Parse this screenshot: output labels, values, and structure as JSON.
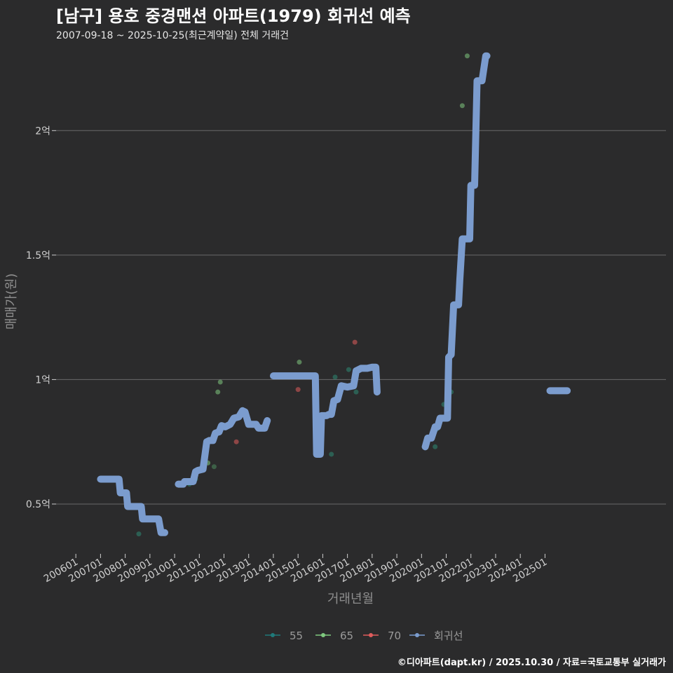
{
  "chart_data": {
    "type": "line",
    "title": "[남구] 용호 중경맨션 아파트(1979) 회귀선 예측",
    "subtitle": "2007-09-18 ~ 2025-10-25(최근계약일) 전체 거래건",
    "xlabel": "거래년월",
    "ylabel": "매매가(원)",
    "caption": "©디아파트(dapt.kr) / 2025.10.30 / 자료=국토교통부 실거래가",
    "x_range": [
      2005.2,
      2029.9
    ],
    "y_range": [
      0.3,
      2.35
    ],
    "x_ticks": [
      {
        "label": "200601",
        "x": 2006.0
      },
      {
        "label": "200701",
        "x": 2007.0
      },
      {
        "label": "200801",
        "x": 2008.0
      },
      {
        "label": "200901",
        "x": 2009.0
      },
      {
        "label": "201001",
        "x": 2010.0
      },
      {
        "label": "201101",
        "x": 2011.0
      },
      {
        "label": "201201",
        "x": 2012.0
      },
      {
        "label": "201301",
        "x": 2013.0
      },
      {
        "label": "201401",
        "x": 2014.0
      },
      {
        "label": "201501",
        "x": 2015.0
      },
      {
        "label": "201601",
        "x": 2016.0
      },
      {
        "label": "201701",
        "x": 2017.0
      },
      {
        "label": "201801",
        "x": 2018.0
      },
      {
        "label": "201901",
        "x": 2019.0
      },
      {
        "label": "202001",
        "x": 2020.0
      },
      {
        "label": "202101",
        "x": 2021.0
      },
      {
        "label": "202201",
        "x": 2022.0
      },
      {
        "label": "202301",
        "x": 2023.0
      },
      {
        "label": "202401",
        "x": 2024.0
      },
      {
        "label": "202501",
        "x": 2025.0
      }
    ],
    "y_ticks": [
      {
        "label": "0.5억",
        "y": 0.5
      },
      {
        "label": "1억",
        "y": 1.0
      },
      {
        "label": "1.5억",
        "y": 1.5
      },
      {
        "label": "2억",
        "y": 2.0
      }
    ],
    "legend": [
      {
        "label": "55",
        "color": "#1f7a7a"
      },
      {
        "label": "65",
        "color": "#7fc97f"
      },
      {
        "label": "70",
        "color": "#e05c5c"
      },
      {
        "label": "회귀선",
        "color": "#7b9cce"
      }
    ],
    "series": [
      {
        "name": "55",
        "color": "#2e8b74",
        "points": [
          [
            2008.55,
            0.38
          ],
          [
            2010.6,
            0.58
          ],
          [
            2010.85,
            0.6
          ],
          [
            2016.35,
            0.7
          ],
          [
            2016.5,
            1.01
          ],
          [
            2017.05,
            1.04
          ],
          [
            2017.35,
            0.95
          ],
          [
            2020.55,
            0.73
          ],
          [
            2020.6,
            0.8
          ],
          [
            2020.9,
            0.9
          ],
          [
            2021.2,
            0.95
          ]
        ]
      },
      {
        "name": "65",
        "color": "#7fc97f",
        "points": [
          [
            2007.75,
            0.6
          ],
          [
            2011.35,
            0.665
          ],
          [
            2011.75,
            0.95
          ],
          [
            2011.85,
            0.99
          ],
          [
            2015.05,
            1.07
          ],
          [
            2021.65,
            2.1
          ],
          [
            2021.85,
            2.3
          ]
        ]
      },
      {
        "name": "70",
        "color": "#e05c5c",
        "points": [
          [
            2011.25,
            0.7
          ],
          [
            2012.5,
            0.75
          ],
          [
            2015.0,
            0.96
          ],
          [
            2017.3,
            1.15
          ]
        ]
      },
      {
        "name": "65",
        "color": "#4c8c5e",
        "points": [
          [
            2011.6,
            0.65
          ]
        ]
      }
    ],
    "regression_segments": [
      [
        [
          2007.0,
          0.6
        ],
        [
          2007.6,
          0.6
        ],
        [
          2007.75,
          0.6
        ],
        [
          2007.8,
          0.545
        ],
        [
          2008.05,
          0.545
        ],
        [
          2008.1,
          0.49
        ],
        [
          2008.65,
          0.49
        ],
        [
          2008.7,
          0.44
        ],
        [
          2009.35,
          0.44
        ],
        [
          2009.45,
          0.385
        ],
        [
          2009.6,
          0.385
        ]
      ],
      [
        [
          2010.15,
          0.58
        ],
        [
          2010.35,
          0.58
        ],
        [
          2010.4,
          0.59
        ],
        [
          2010.75,
          0.59
        ],
        [
          2010.85,
          0.63
        ],
        [
          2010.95,
          0.635
        ],
        [
          2011.15,
          0.64
        ],
        [
          2011.3,
          0.75
        ],
        [
          2011.4,
          0.755
        ],
        [
          2011.55,
          0.755
        ],
        [
          2011.65,
          0.785
        ],
        [
          2011.8,
          0.79
        ],
        [
          2011.9,
          0.815
        ],
        [
          2012.05,
          0.81
        ],
        [
          2012.25,
          0.82
        ],
        [
          2012.4,
          0.845
        ],
        [
          2012.6,
          0.85
        ],
        [
          2012.75,
          0.875
        ],
        [
          2012.85,
          0.87
        ],
        [
          2013.0,
          0.82
        ],
        [
          2013.3,
          0.82
        ],
        [
          2013.4,
          0.805
        ],
        [
          2013.65,
          0.805
        ],
        [
          2013.75,
          0.835
        ]
      ],
      [
        [
          2014.0,
          1.015
        ],
        [
          2015.7,
          1.015
        ],
        [
          2015.75,
          0.7
        ],
        [
          2015.9,
          0.7
        ],
        [
          2015.95,
          0.855
        ],
        [
          2016.15,
          0.855
        ],
        [
          2016.25,
          0.86
        ],
        [
          2016.35,
          0.86
        ],
        [
          2016.45,
          0.915
        ],
        [
          2016.6,
          0.92
        ],
        [
          2016.75,
          0.975
        ],
        [
          2017.0,
          0.97
        ],
        [
          2017.25,
          0.975
        ],
        [
          2017.35,
          1.035
        ],
        [
          2017.55,
          1.045
        ],
        [
          2017.8,
          1.045
        ],
        [
          2018.0,
          1.05
        ],
        [
          2018.15,
          1.05
        ],
        [
          2018.2,
          0.95
        ]
      ],
      [
        [
          2020.15,
          0.73
        ],
        [
          2020.25,
          0.765
        ],
        [
          2020.4,
          0.765
        ],
        [
          2020.55,
          0.81
        ],
        [
          2020.65,
          0.81
        ],
        [
          2020.75,
          0.845
        ],
        [
          2021.05,
          0.845
        ],
        [
          2021.1,
          1.09
        ],
        [
          2021.2,
          1.1
        ],
        [
          2021.3,
          1.3
        ],
        [
          2021.5,
          1.3
        ],
        [
          2021.55,
          1.4
        ],
        [
          2021.65,
          1.565
        ],
        [
          2021.95,
          1.565
        ],
        [
          2022.0,
          1.78
        ],
        [
          2022.15,
          1.78
        ],
        [
          2022.25,
          2.2
        ],
        [
          2022.45,
          2.2
        ],
        [
          2022.6,
          2.3
        ],
        [
          2022.65,
          2.3
        ]
      ],
      [
        [
          2025.2,
          0.955
        ],
        [
          2025.9,
          0.955
        ]
      ]
    ]
  }
}
